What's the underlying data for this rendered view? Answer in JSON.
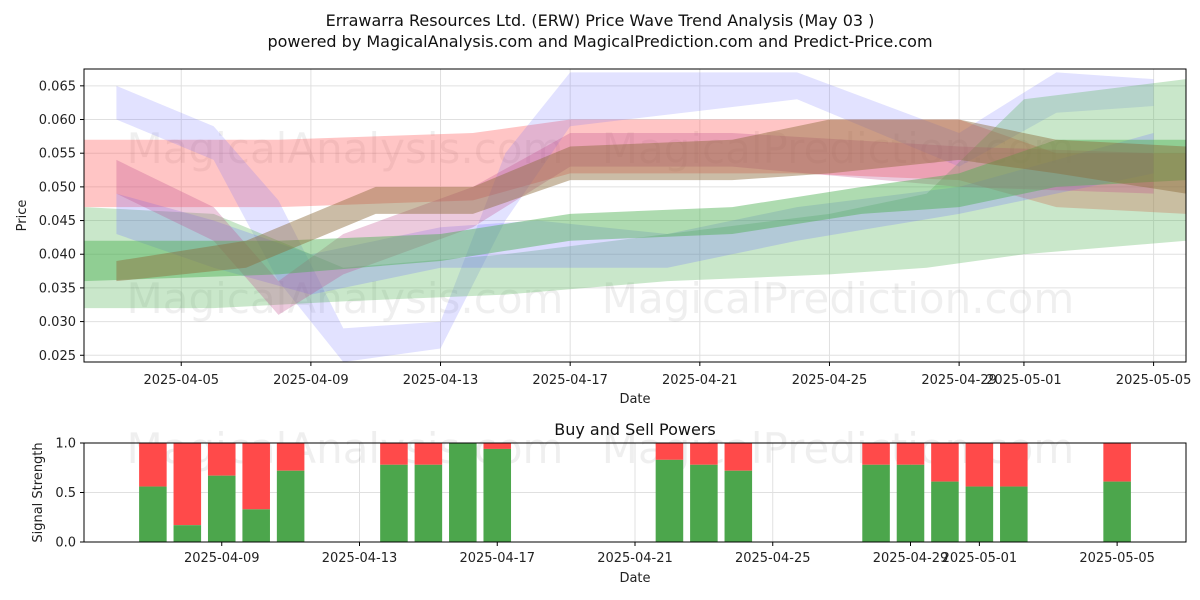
{
  "title_line1": "Errawarra Resources Ltd. (ERW) Price Wave Trend Analysis (May 03 )",
  "title_line2": "powered by MagicalAnalysis.com and MagicalPrediction.com and Predict-Price.com",
  "watermarks": [
    "MagicalAnalysis.com",
    "MagicalPrediction.com"
  ],
  "colors": {
    "blue": "#6f6fff",
    "red": "#ff5a5a",
    "green": "#4caf50",
    "brown": "#8b6a3a",
    "magenta": "#c05090",
    "buy": "#4ca64c",
    "sell": "#ff4a4a"
  },
  "chart_data": [
    {
      "type": "area",
      "xlabel": "Date",
      "ylabel": "Price",
      "ylim": [
        0.024,
        0.0675
      ],
      "x_range": [
        "2025-04-02",
        "2025-05-06"
      ],
      "xticks": [
        "2025-04-05",
        "2025-04-09",
        "2025-04-13",
        "2025-04-17",
        "2025-04-21",
        "2025-04-25",
        "2025-04-29",
        "2025-05-01",
        "2025-05-05"
      ],
      "yticks": [
        "0.025",
        "0.030",
        "0.035",
        "0.040",
        "0.045",
        "0.050",
        "0.055",
        "0.060",
        "0.065"
      ],
      "grid": true,
      "bands": [
        {
          "color": "red",
          "opacity": 0.35,
          "points": [
            [
              "2025-04-02",
              0.057,
              0.047
            ],
            [
              "2025-04-08",
              0.057,
              0.047
            ],
            [
              "2025-04-14",
              0.058,
              0.048
            ],
            [
              "2025-04-17",
              0.06,
              0.052
            ],
            [
              "2025-04-24",
              0.06,
              0.052
            ],
            [
              "2025-04-29",
              0.06,
              0.051
            ],
            [
              "2025-05-02",
              0.055,
              0.047
            ],
            [
              "2025-05-06",
              0.055,
              0.046
            ]
          ]
        },
        {
          "color": "blue",
          "opacity": 0.2,
          "points": [
            [
              "2025-04-03",
              0.065,
              0.06
            ],
            [
              "2025-04-06",
              0.059,
              0.054
            ],
            [
              "2025-04-08",
              0.048,
              0.036
            ],
            [
              "2025-04-10",
              0.029,
              0.024
            ],
            [
              "2025-04-13",
              0.03,
              0.026
            ],
            [
              "2025-04-15",
              0.055,
              0.045
            ],
            [
              "2025-04-17",
              0.067,
              0.059
            ],
            [
              "2025-04-24",
              0.067,
              0.063
            ],
            [
              "2025-04-29",
              0.058,
              0.053
            ],
            [
              "2025-05-02",
              0.067,
              0.061
            ],
            [
              "2025-05-05",
              0.066,
              0.062
            ]
          ]
        },
        {
          "color": "green",
          "opacity": 0.3,
          "points": [
            [
              "2025-04-02",
              0.047,
              0.032
            ],
            [
              "2025-04-06",
              0.046,
              0.032
            ],
            [
              "2025-04-10",
              0.038,
              0.033
            ],
            [
              "2025-04-15",
              0.04,
              0.034
            ],
            [
              "2025-04-20",
              0.043,
              0.036
            ],
            [
              "2025-04-25",
              0.046,
              0.037
            ],
            [
              "2025-04-28",
              0.049,
              0.038
            ],
            [
              "2025-05-01",
              0.063,
              0.04
            ],
            [
              "2025-05-06",
              0.066,
              0.042
            ]
          ]
        },
        {
          "color": "blue",
          "opacity": 0.25,
          "points": [
            [
              "2025-04-03",
              0.049,
              0.043
            ],
            [
              "2025-04-06",
              0.045,
              0.038
            ],
            [
              "2025-04-09",
              0.04,
              0.034
            ],
            [
              "2025-04-13",
              0.044,
              0.038
            ],
            [
              "2025-04-16",
              0.045,
              0.038
            ],
            [
              "2025-04-20",
              0.043,
              0.038
            ],
            [
              "2025-04-24",
              0.047,
              0.042
            ],
            [
              "2025-04-29",
              0.05,
              0.046
            ],
            [
              "2025-05-05",
              0.058,
              0.052
            ]
          ]
        },
        {
          "color": "magenta",
          "opacity": 0.3,
          "points": [
            [
              "2025-04-03",
              0.054,
              0.049
            ],
            [
              "2025-04-06",
              0.047,
              0.042
            ],
            [
              "2025-04-08",
              0.036,
              0.031
            ],
            [
              "2025-04-10",
              0.043,
              0.037
            ],
            [
              "2025-04-14",
              0.05,
              0.044
            ],
            [
              "2025-04-17",
              0.058,
              0.053
            ],
            [
              "2025-04-22",
              0.058,
              0.053
            ],
            [
              "2025-04-29",
              0.056,
              0.05
            ],
            [
              "2025-05-05",
              0.055,
              0.049
            ]
          ]
        },
        {
          "color": "green",
          "opacity": 0.45,
          "points": [
            [
              "2025-04-02",
              0.042,
              0.036
            ],
            [
              "2025-04-08",
              0.042,
              0.037
            ],
            [
              "2025-04-13",
              0.043,
              0.039
            ],
            [
              "2025-04-17",
              0.046,
              0.042
            ],
            [
              "2025-04-22",
              0.047,
              0.043
            ],
            [
              "2025-04-26",
              0.05,
              0.046
            ],
            [
              "2025-04-29",
              0.052,
              0.047
            ],
            [
              "2025-05-02",
              0.057,
              0.05
            ],
            [
              "2025-05-06",
              0.057,
              0.051
            ]
          ]
        },
        {
          "color": "brown",
          "opacity": 0.45,
          "points": [
            [
              "2025-04-03",
              0.039,
              0.036
            ],
            [
              "2025-04-07",
              0.042,
              0.038
            ],
            [
              "2025-04-11",
              0.05,
              0.046
            ],
            [
              "2025-04-14",
              0.05,
              0.046
            ],
            [
              "2025-04-17",
              0.056,
              0.051
            ],
            [
              "2025-04-22",
              0.057,
              0.051
            ],
            [
              "2025-04-25",
              0.06,
              0.052
            ],
            [
              "2025-04-29",
              0.06,
              0.054
            ],
            [
              "2025-05-02",
              0.057,
              0.052
            ],
            [
              "2025-05-06",
              0.056,
              0.049
            ]
          ]
        }
      ]
    },
    {
      "type": "bar",
      "title": "Buy and Sell Powers",
      "xlabel": "Date",
      "ylabel": "Signal Strength",
      "ylim": [
        0,
        1.0
      ],
      "x_range": [
        "2025-04-05",
        "2025-05-07"
      ],
      "xticks": [
        "2025-04-09",
        "2025-04-13",
        "2025-04-17",
        "2025-04-21",
        "2025-04-25",
        "2025-04-29",
        "2025-05-01",
        "2025-05-05"
      ],
      "yticks": [
        "0.0",
        "0.5",
        "1.0"
      ],
      "grid": true,
      "series": [
        {
          "name": "buy",
          "color": "buy"
        },
        {
          "name": "sell",
          "color": "sell"
        }
      ],
      "bars": [
        {
          "date": "2025-04-07",
          "buy": 0.56
        },
        {
          "date": "2025-04-08",
          "buy": 0.17
        },
        {
          "date": "2025-04-09",
          "buy": 0.67
        },
        {
          "date": "2025-04-10",
          "buy": 0.33
        },
        {
          "date": "2025-04-11",
          "buy": 0.72
        },
        {
          "date": "2025-04-14",
          "buy": 0.78
        },
        {
          "date": "2025-04-15",
          "buy": 0.78
        },
        {
          "date": "2025-04-16",
          "buy": 1.0
        },
        {
          "date": "2025-04-17",
          "buy": 0.94
        },
        {
          "date": "2025-04-22",
          "buy": 0.83
        },
        {
          "date": "2025-04-23",
          "buy": 0.78
        },
        {
          "date": "2025-04-24",
          "buy": 0.72
        },
        {
          "date": "2025-04-28",
          "buy": 0.78
        },
        {
          "date": "2025-04-29",
          "buy": 0.78
        },
        {
          "date": "2025-04-30",
          "buy": 0.61
        },
        {
          "date": "2025-05-01",
          "buy": 0.56
        },
        {
          "date": "2025-05-02",
          "buy": 0.56
        },
        {
          "date": "2025-05-05",
          "buy": 0.61
        }
      ]
    }
  ]
}
